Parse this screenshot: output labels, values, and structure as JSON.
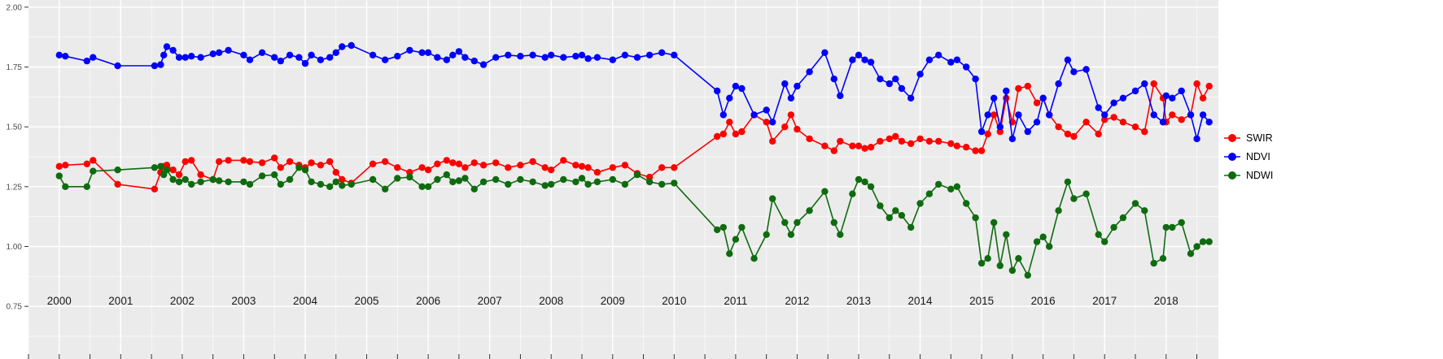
{
  "chart_data": {
    "type": "line",
    "title": "",
    "grid": {
      "major": true,
      "minor": true
    },
    "legend_position": "right",
    "style": {
      "panel_background": "#EBEBEB",
      "page_background": "#FFFFFF",
      "grid_color": "#FFFFFF",
      "y_axis_text_color": "#4D4D4D",
      "x_axis_text_color": "#1A1A1A",
      "tick_color": "#333333"
    },
    "x_axis": {
      "min": 1999.5,
      "max": 2018.85,
      "tick_values": [
        2000,
        2001,
        2002,
        2003,
        2004,
        2005,
        2006,
        2007,
        2008,
        2009,
        2010,
        2011,
        2012,
        2013,
        2014,
        2015,
        2016,
        2017,
        2018
      ],
      "tick_labels": [
        "2000",
        "2001",
        "2002",
        "2003",
        "2004",
        "2005",
        "2006",
        "2007",
        "2008",
        "2009",
        "2010",
        "2011",
        "2012",
        "2013",
        "2014",
        "2015",
        "2016",
        "2017",
        "2018"
      ]
    },
    "y_axis": {
      "min": 0.53,
      "max": 2.03,
      "tick_values": [
        0.75,
        1.0,
        1.25,
        1.5,
        1.75,
        2.0
      ],
      "tick_labels": [
        "0.75",
        "1.00",
        "1.25",
        "1.50",
        "1.75",
        "2.00"
      ]
    },
    "x": [
      2000.0,
      2000.1,
      2000.45,
      2000.55,
      2000.95,
      2001.55,
      2001.65,
      2001.7,
      2001.75,
      2001.85,
      2001.95,
      2002.05,
      2002.15,
      2002.3,
      2002.5,
      2002.6,
      2002.75,
      2003.0,
      2003.1,
      2003.3,
      2003.5,
      2003.6,
      2003.75,
      2003.9,
      2004.0,
      2004.1,
      2004.25,
      2004.4,
      2004.5,
      2004.6,
      2004.75,
      2005.1,
      2005.3,
      2005.5,
      2005.7,
      2005.9,
      2006.0,
      2006.15,
      2006.3,
      2006.4,
      2006.5,
      2006.6,
      2006.75,
      2006.9,
      2007.1,
      2007.3,
      2007.5,
      2007.7,
      2007.9,
      2008.0,
      2008.2,
      2008.4,
      2008.5,
      2008.6,
      2008.75,
      2009.0,
      2009.2,
      2009.4,
      2009.6,
      2009.8,
      2010.0,
      2010.7,
      2010.8,
      2010.9,
      2011.0,
      2011.1,
      2011.3,
      2011.5,
      2011.6,
      2011.8,
      2011.9,
      2012.0,
      2012.2,
      2012.45,
      2012.6,
      2012.7,
      2012.9,
      2013.0,
      2013.1,
      2013.2,
      2013.35,
      2013.5,
      2013.6,
      2013.7,
      2013.85,
      2014.0,
      2014.15,
      2014.3,
      2014.5,
      2014.6,
      2014.75,
      2014.9,
      2015.0,
      2015.1,
      2015.2,
      2015.3,
      2015.4,
      2015.5,
      2015.6,
      2015.75,
      2015.9,
      2016.0,
      2016.1,
      2016.25,
      2016.4,
      2016.5,
      2016.7,
      2016.9,
      2017.0,
      2017.15,
      2017.3,
      2017.5,
      2017.65,
      2017.8,
      2017.95,
      2018.0,
      2018.1,
      2018.25,
      2018.4,
      2018.5,
      2018.6,
      2018.7
    ],
    "series": [
      {
        "name": "SWIR",
        "color": "#FF0000",
        "values": [
          1.335,
          1.34,
          1.345,
          1.36,
          1.26,
          1.24,
          1.31,
          1.335,
          1.34,
          1.32,
          1.3,
          1.355,
          1.36,
          1.3,
          1.28,
          1.355,
          1.36,
          1.36,
          1.355,
          1.35,
          1.37,
          1.33,
          1.355,
          1.34,
          1.33,
          1.35,
          1.34,
          1.355,
          1.31,
          1.28,
          1.265,
          1.345,
          1.355,
          1.33,
          1.31,
          1.33,
          1.32,
          1.345,
          1.36,
          1.35,
          1.345,
          1.33,
          1.35,
          1.34,
          1.35,
          1.33,
          1.34,
          1.355,
          1.33,
          1.32,
          1.36,
          1.34,
          1.335,
          1.33,
          1.31,
          1.33,
          1.34,
          1.305,
          1.29,
          1.33,
          1.33,
          1.46,
          1.47,
          1.52,
          1.47,
          1.48,
          1.55,
          1.52,
          1.44,
          1.5,
          1.55,
          1.49,
          1.45,
          1.42,
          1.4,
          1.44,
          1.42,
          1.42,
          1.41,
          1.415,
          1.44,
          1.45,
          1.46,
          1.44,
          1.43,
          1.45,
          1.44,
          1.44,
          1.43,
          1.42,
          1.415,
          1.4,
          1.4,
          1.47,
          1.55,
          1.48,
          1.62,
          1.52,
          1.66,
          1.67,
          1.6,
          1.62,
          1.55,
          1.5,
          1.47,
          1.46,
          1.52,
          1.47,
          1.53,
          1.54,
          1.52,
          1.5,
          1.48,
          1.68,
          1.62,
          1.52,
          1.55,
          1.53,
          1.55,
          1.68,
          1.62,
          1.67
        ]
      },
      {
        "name": "NDVI",
        "color": "#0000FF",
        "values": [
          1.8,
          1.795,
          1.775,
          1.79,
          1.755,
          1.755,
          1.76,
          1.8,
          1.835,
          1.82,
          1.79,
          1.79,
          1.795,
          1.79,
          1.805,
          1.81,
          1.82,
          1.8,
          1.78,
          1.81,
          1.79,
          1.775,
          1.8,
          1.79,
          1.765,
          1.8,
          1.78,
          1.79,
          1.81,
          1.835,
          1.84,
          1.8,
          1.78,
          1.795,
          1.82,
          1.81,
          1.81,
          1.79,
          1.78,
          1.8,
          1.815,
          1.79,
          1.775,
          1.76,
          1.79,
          1.8,
          1.795,
          1.8,
          1.79,
          1.8,
          1.79,
          1.795,
          1.8,
          1.785,
          1.79,
          1.78,
          1.8,
          1.79,
          1.8,
          1.81,
          1.8,
          1.65,
          1.55,
          1.62,
          1.67,
          1.66,
          1.55,
          1.57,
          1.52,
          1.68,
          1.62,
          1.67,
          1.73,
          1.81,
          1.7,
          1.63,
          1.78,
          1.8,
          1.78,
          1.77,
          1.7,
          1.68,
          1.7,
          1.66,
          1.62,
          1.72,
          1.78,
          1.8,
          1.77,
          1.78,
          1.75,
          1.7,
          1.48,
          1.55,
          1.62,
          1.5,
          1.65,
          1.45,
          1.55,
          1.48,
          1.52,
          1.62,
          1.55,
          1.68,
          1.78,
          1.73,
          1.74,
          1.58,
          1.55,
          1.6,
          1.62,
          1.65,
          1.68,
          1.55,
          1.52,
          1.63,
          1.62,
          1.65,
          1.55,
          1.45,
          1.55,
          1.52
        ]
      },
      {
        "name": "NDWI",
        "color": "#0F6B0F",
        "values": [
          1.295,
          1.25,
          1.25,
          1.315,
          1.32,
          1.33,
          1.335,
          1.3,
          1.32,
          1.28,
          1.27,
          1.28,
          1.26,
          1.27,
          1.28,
          1.275,
          1.27,
          1.27,
          1.26,
          1.295,
          1.3,
          1.26,
          1.28,
          1.33,
          1.32,
          1.27,
          1.26,
          1.25,
          1.27,
          1.255,
          1.26,
          1.28,
          1.24,
          1.285,
          1.29,
          1.25,
          1.25,
          1.28,
          1.3,
          1.27,
          1.275,
          1.285,
          1.24,
          1.27,
          1.28,
          1.26,
          1.28,
          1.27,
          1.255,
          1.26,
          1.28,
          1.27,
          1.285,
          1.26,
          1.27,
          1.28,
          1.26,
          1.3,
          1.27,
          1.26,
          1.265,
          1.07,
          1.08,
          0.97,
          1.03,
          1.08,
          0.95,
          1.05,
          1.2,
          1.1,
          1.05,
          1.1,
          1.15,
          1.23,
          1.1,
          1.05,
          1.22,
          1.28,
          1.27,
          1.25,
          1.17,
          1.12,
          1.15,
          1.13,
          1.08,
          1.18,
          1.22,
          1.26,
          1.24,
          1.25,
          1.18,
          1.12,
          0.93,
          0.95,
          1.1,
          0.92,
          1.05,
          0.9,
          0.95,
          0.88,
          1.02,
          1.04,
          1.0,
          1.15,
          1.27,
          1.2,
          1.22,
          1.05,
          1.02,
          1.08,
          1.12,
          1.18,
          1.15,
          0.93,
          0.95,
          1.08,
          1.08,
          1.1,
          0.97,
          1.0,
          1.02,
          1.02
        ]
      }
    ]
  }
}
